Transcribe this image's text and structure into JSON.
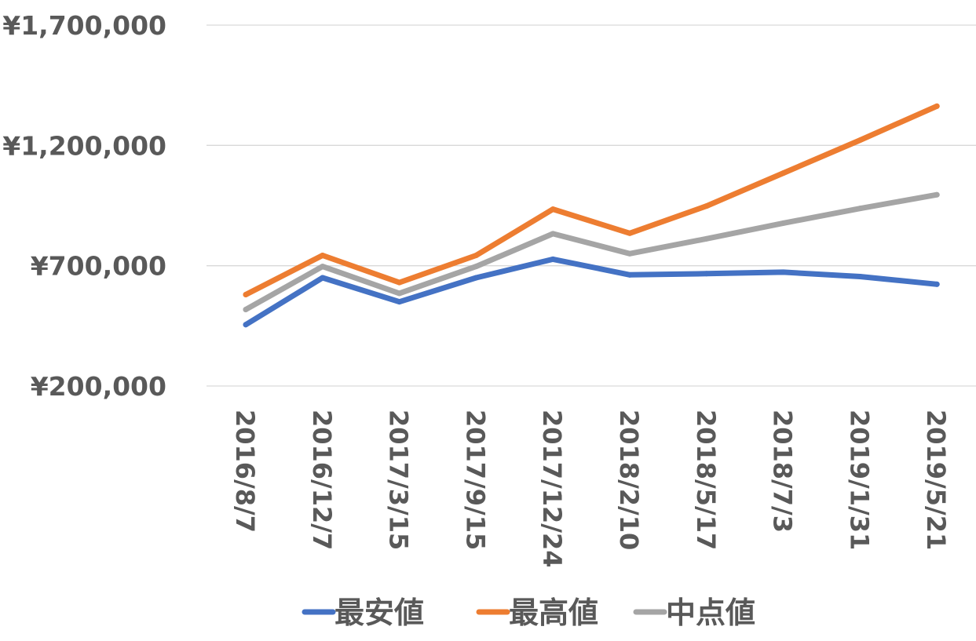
{
  "chart_data": {
    "type": "line",
    "title": "",
    "xlabel": "",
    "ylabel": "",
    "ylim": [
      200000,
      1700000
    ],
    "yticks": [
      200000,
      700000,
      1200000,
      1700000
    ],
    "ytick_labels": [
      "¥200,000",
      "¥700,000",
      "¥1,200,000",
      "¥1,700,000"
    ],
    "categories": [
      "2016/8/7",
      "2016/12/7",
      "2017/3/15",
      "2017/9/15",
      "2017/12/24",
      "2018/2/10",
      "2018/5/17",
      "2018/7/3",
      "2019/1/31",
      "2019/5/21"
    ],
    "grid": true,
    "legend_position": "bottom",
    "series": [
      {
        "name": "最安値",
        "color": "#4472C4",
        "values": [
          455000,
          650000,
          550000,
          650000,
          727000,
          662000,
          667000,
          673000,
          655000,
          623000
        ]
      },
      {
        "name": "最高値",
        "color": "#ED7D31",
        "values": [
          580000,
          743000,
          630000,
          743000,
          935000,
          835000,
          948000,
          1085000,
          1222000,
          1363000
        ]
      },
      {
        "name": "中点値",
        "color": "#A5A5A5",
        "values": [
          518000,
          697000,
          585000,
          697000,
          833000,
          750000,
          812000,
          877000,
          938000,
          995000
        ]
      }
    ]
  }
}
